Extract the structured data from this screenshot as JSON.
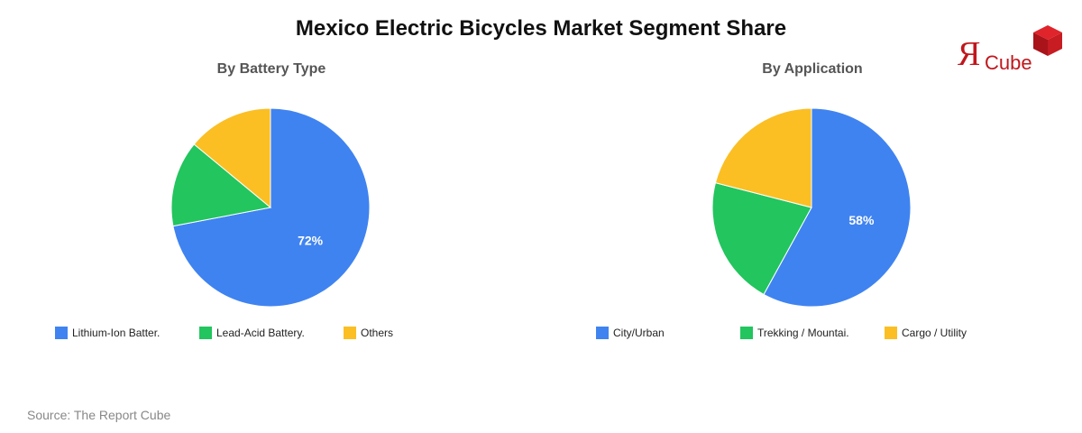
{
  "title": "Mexico Electric Bicycles Market Segment Share",
  "source": "Source: The Report Cube",
  "logo": {
    "mark": "Я",
    "word": "Cube"
  },
  "colors": {
    "blue": "#3f83f1",
    "green": "#22c55e",
    "yellow": "#fbbf24",
    "logo_red": "#c0171d"
  },
  "chart_data": [
    {
      "type": "pie",
      "title": "By Battery Type",
      "categories": [
        "Lithium-Ion Batter.",
        "Lead-Acid Battery.",
        "Others"
      ],
      "values": [
        72,
        14,
        14
      ],
      "colors": [
        "#3f83f1",
        "#22c55e",
        "#fbbf24"
      ],
      "data_labels": [
        "72%",
        "",
        ""
      ],
      "legend": "bottom"
    },
    {
      "type": "pie",
      "title": "By Application",
      "categories": [
        "City/Urban",
        "Trekking / Mountai.",
        "Cargo / Utility"
      ],
      "values": [
        58,
        21,
        21
      ],
      "colors": [
        "#3f83f1",
        "#22c55e",
        "#fbbf24"
      ],
      "data_labels": [
        "58%",
        "",
        ""
      ],
      "legend": "bottom"
    }
  ]
}
